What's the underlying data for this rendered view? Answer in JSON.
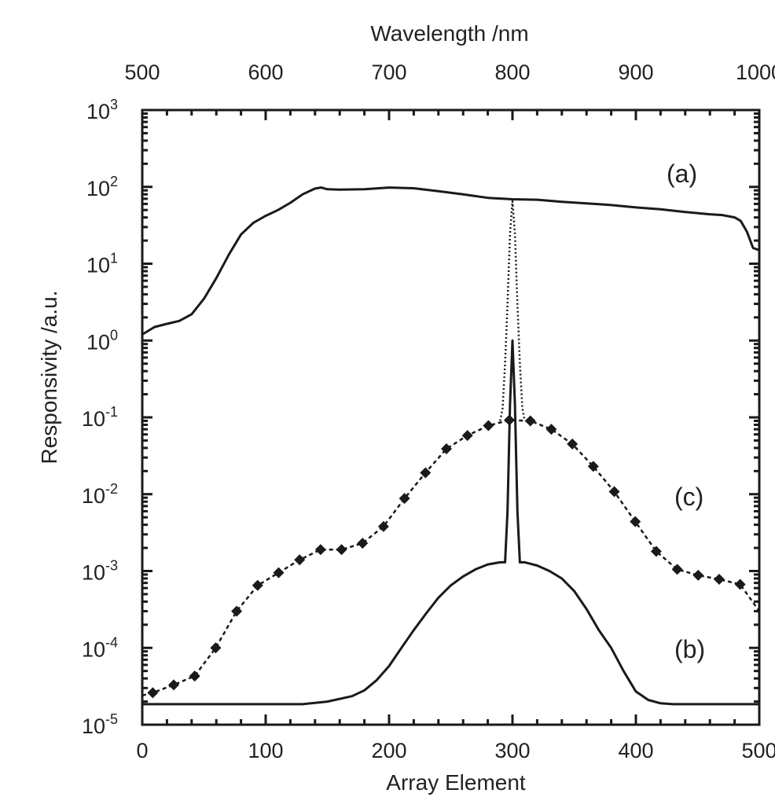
{
  "chart_data": {
    "type": "line",
    "title": "",
    "xlabel": "Array Element",
    "top_xlabel": "Wavelength /nm",
    "ylabel": "Responsivity /a.u.",
    "xlim": [
      0,
      500
    ],
    "top_xlim": [
      500,
      1000
    ],
    "ylim": [
      1e-05,
      1000
    ],
    "yscale": "log",
    "x_ticks": [
      "0",
      "100",
      "200",
      "300",
      "400",
      "500"
    ],
    "top_x_ticks": [
      "500",
      "600",
      "700",
      "800",
      "900",
      "1000"
    ],
    "y_ticks": [
      {
        "base": "10",
        "exp": "-5"
      },
      {
        "base": "10",
        "exp": "-4"
      },
      {
        "base": "10",
        "exp": "-3"
      },
      {
        "base": "10",
        "exp": "-2"
      },
      {
        "base": "10",
        "exp": "-1"
      },
      {
        "base": "10",
        "exp": "0"
      },
      {
        "base": "10",
        "exp": "1"
      },
      {
        "base": "10",
        "exp": "2"
      },
      {
        "base": "10",
        "exp": "3"
      }
    ],
    "grid": false,
    "annotations": [
      "(a)",
      "(b)",
      "(c)"
    ],
    "series": [
      {
        "label": "(a)",
        "style": "solid",
        "x": [
          0,
          10,
          20,
          30,
          40,
          50,
          60,
          70,
          80,
          90,
          100,
          110,
          120,
          130,
          140,
          145,
          150,
          160,
          180,
          200,
          220,
          240,
          260,
          280,
          300,
          320,
          340,
          360,
          380,
          400,
          420,
          440,
          460,
          470,
          480,
          485,
          490,
          495,
          500
        ],
        "y": [
          1.2,
          1.5,
          1.65,
          1.8,
          2.2,
          3.5,
          6.5,
          13,
          24,
          34,
          42,
          50,
          62,
          80,
          95,
          98,
          93,
          92,
          93,
          98,
          96,
          88,
          80,
          72,
          69,
          68,
          64,
          61,
          58,
          54,
          51,
          47,
          44,
          43,
          40,
          36,
          26,
          16,
          15
        ]
      },
      {
        "label": "(c) dotted",
        "style": "dotted",
        "x": [
          290,
          292,
          294,
          296,
          298,
          300,
          302,
          304,
          306,
          308,
          310
        ],
        "y": [
          0.09,
          0.13,
          0.5,
          3,
          25,
          65,
          25,
          3,
          0.5,
          0.13,
          0.09
        ]
      },
      {
        "label": "(c)",
        "style": "dashed-markers",
        "x": [
          0,
          8.5,
          25.5,
          42.5,
          59.5,
          76.5,
          93.5,
          110.5,
          127.5,
          144.5,
          161.5,
          178.5,
          195.5,
          212.5,
          229.5,
          246.5,
          263.5,
          280.5,
          297.5,
          314.5,
          331.5,
          348.5,
          365.5,
          382.5,
          399.5,
          416.5,
          433.5,
          450.5,
          467.5,
          484.5,
          500
        ],
        "y": [
          2.4e-05,
          2.6e-05,
          3.3e-05,
          4.3e-05,
          0.0001,
          0.0003,
          0.00065,
          0.00095,
          0.0014,
          0.0019,
          0.0019,
          0.0023,
          0.0038,
          0.0088,
          0.019,
          0.039,
          0.058,
          0.078,
          0.092,
          0.09,
          0.07,
          0.045,
          0.023,
          0.0108,
          0.0044,
          0.0018,
          0.00105,
          0.00088,
          0.00078,
          0.00067,
          0.0003
        ]
      },
      {
        "label": "(b)",
        "style": "solid",
        "x": [
          0,
          130,
          150,
          170,
          180,
          190,
          200,
          210,
          220,
          230,
          240,
          250,
          260,
          270,
          280,
          290,
          294,
          296,
          298,
          300,
          302,
          304,
          306,
          310,
          320,
          330,
          340,
          350,
          360,
          370,
          380,
          390,
          400,
          410,
          420,
          430,
          440,
          500
        ],
        "y": [
          1.85e-05,
          1.85e-05,
          2e-05,
          2.35e-05,
          2.8e-05,
          3.8e-05,
          5.8e-05,
          0.0001,
          0.00017,
          0.00028,
          0.00045,
          0.00065,
          0.00085,
          0.00105,
          0.00122,
          0.0013,
          0.0013,
          0.006,
          0.15,
          1.0,
          0.15,
          0.006,
          0.0013,
          0.0013,
          0.00118,
          0.001,
          0.0008,
          0.00055,
          0.00032,
          0.00017,
          0.0001,
          5e-05,
          2.7e-05,
          2.1e-05,
          1.9e-05,
          1.85e-05,
          1.85e-05,
          1.85e-05
        ]
      }
    ],
    "colors": {
      "line": "#1a1a1a",
      "axis": "#1a1a1a",
      "background": "#ffffff"
    }
  }
}
